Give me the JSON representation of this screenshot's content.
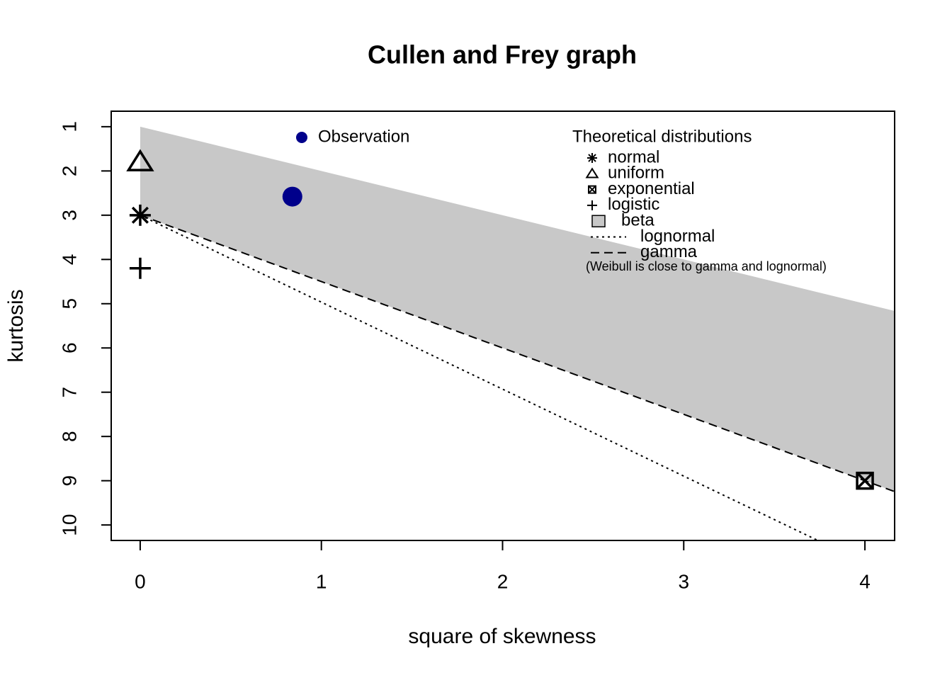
{
  "chart_data": {
    "type": "cullen-frey",
    "title": "Cullen and Frey graph",
    "x_label": "square of skewness",
    "y_label": "kurtosis",
    "xlim": [
      -0.16,
      4.164
    ],
    "ylim": [
      10.35,
      0.65
    ],
    "xticks": [
      0,
      1,
      2,
      3,
      4
    ],
    "yticks": [
      1,
      2,
      3,
      4,
      5,
      6,
      7,
      8,
      9,
      10
    ],
    "observation": {
      "name": "Observation",
      "color": "#00008B",
      "x": [
        0.84
      ],
      "y": [
        2.58
      ]
    },
    "legend_title": "Theoretical distributions",
    "note": "(Weibull is close to gamma and lognormal)",
    "series": [
      {
        "name": "normal",
        "kind": "point",
        "symbol": "asterisk",
        "x": [
          0
        ],
        "y": [
          3
        ]
      },
      {
        "name": "uniform",
        "kind": "point",
        "symbol": "triangle",
        "x": [
          0
        ],
        "y": [
          1.8
        ]
      },
      {
        "name": "exponential",
        "kind": "point",
        "symbol": "boxed-x",
        "x": [
          4
        ],
        "y": [
          9
        ]
      },
      {
        "name": "logistic",
        "kind": "point",
        "symbol": "plus",
        "x": [
          0
        ],
        "y": [
          4.2
        ]
      },
      {
        "name": "beta",
        "kind": "region",
        "color": "#C8C8C8",
        "x": [
          0,
          4.164,
          4.164,
          0
        ],
        "y": [
          1,
          5.164,
          9.246,
          3
        ]
      },
      {
        "name": "lognormal",
        "kind": "line",
        "dash": "dotted",
        "x": [
          0,
          3.74
        ],
        "y": [
          3,
          10.35
        ]
      },
      {
        "name": "gamma",
        "kind": "line",
        "dash": "dashed",
        "x": [
          0,
          4.164
        ],
        "y": [
          3,
          9.246
        ]
      }
    ]
  }
}
